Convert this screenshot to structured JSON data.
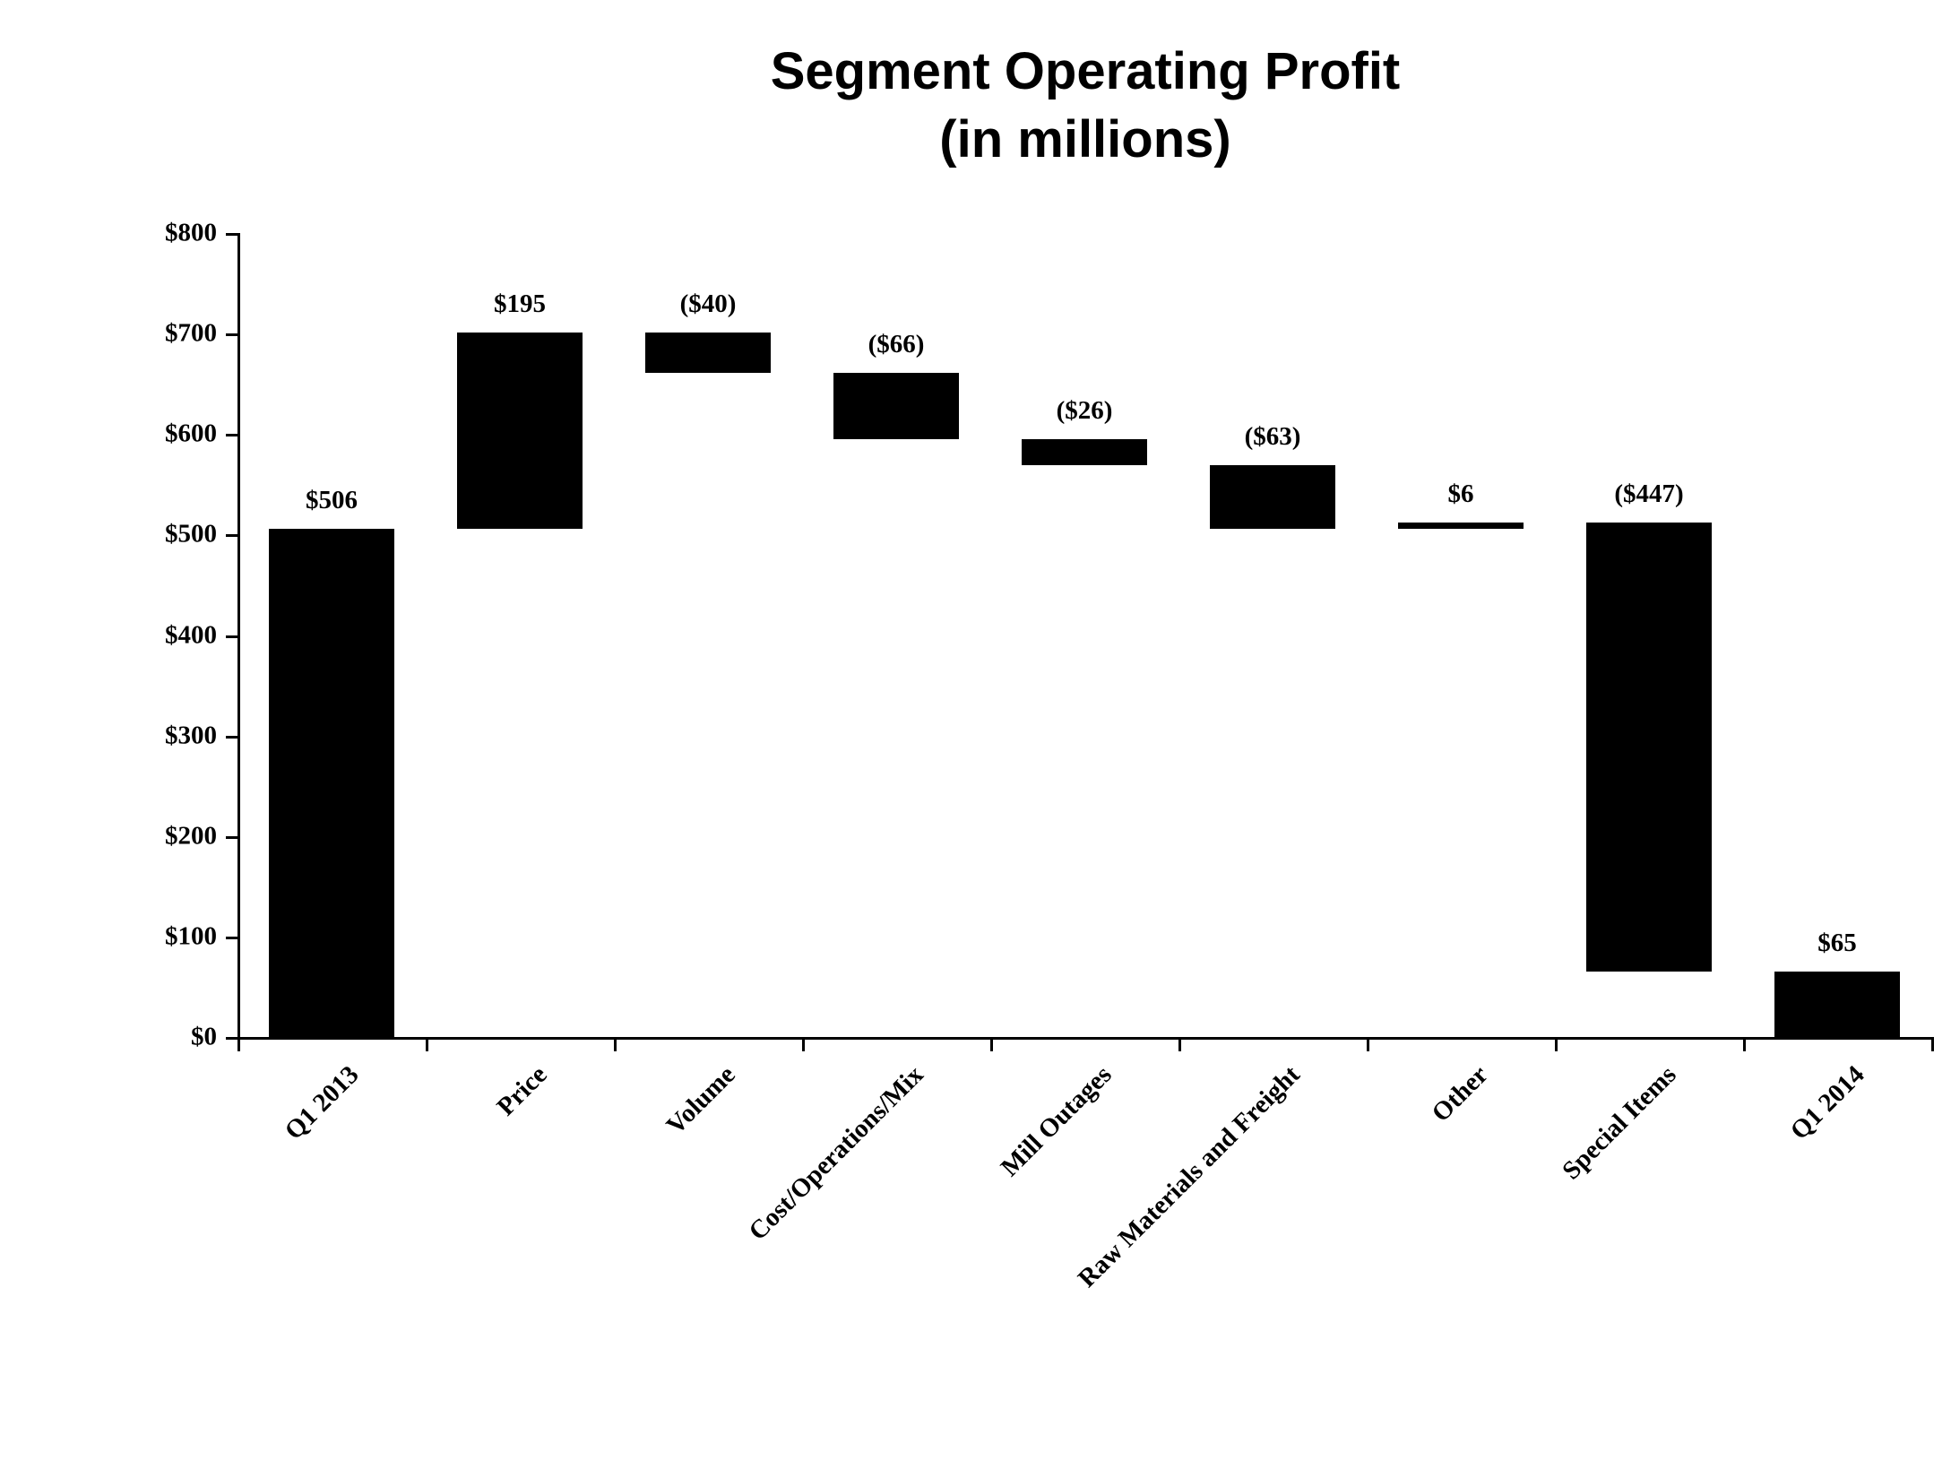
{
  "chart_data": {
    "type": "waterfall-bar",
    "title": "Segment Operating Profit",
    "subtitle": "(in millions)",
    "categories": [
      "Q1 2013",
      "Price",
      "Volume",
      "Cost/Operations/Mix",
      "Mill Outages",
      "Raw Materials and Freight",
      "Other",
      "Special Items",
      "Q1 2014"
    ],
    "values": [
      506,
      195,
      -40,
      -66,
      -26,
      -63,
      6,
      -447,
      65
    ],
    "value_labels": [
      "$506",
      "$195",
      "($40)",
      "($66)",
      "($26)",
      "($63)",
      "$6",
      "($447)",
      "$65"
    ],
    "bar_roles": [
      "total",
      "delta",
      "delta",
      "delta",
      "delta",
      "delta",
      "delta",
      "delta",
      "total"
    ],
    "cumulative_levels": [
      506,
      701,
      661,
      595,
      569,
      506,
      512,
      65,
      65
    ],
    "ylim": [
      0,
      800
    ],
    "ytick_interval": 100,
    "ytick_labels": [
      "$0",
      "$100",
      "$200",
      "$300",
      "$400",
      "$500",
      "$600",
      "$700",
      "$800"
    ],
    "xlabel": "",
    "ylabel": "",
    "legend": "none",
    "grid": "off",
    "bar_color": "#000000",
    "axis_color": "#000000",
    "background_color": "#ffffff"
  }
}
